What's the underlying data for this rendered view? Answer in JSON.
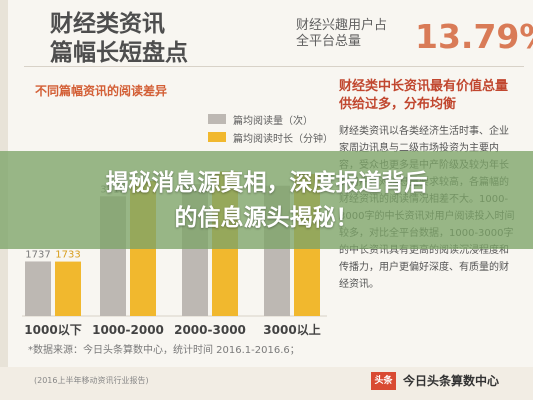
{
  "header": {
    "title_line1": "财经类资讯",
    "title_line2": "篇幅长短盘点",
    "share_label_line1": "财经兴趣用户占",
    "share_label_line2": "全平台总量",
    "share_value": "13.79%"
  },
  "subtitle": "不同篇幅资讯的阅读差异",
  "legend": {
    "items": [
      {
        "label": "篇均阅读量（次）",
        "color": "#bdb8b3"
      },
      {
        "label": "篇均阅读时长（分钟）",
        "color": "#f1b82e"
      }
    ]
  },
  "right_panel": {
    "title": "财经类中长资讯最有价值总量供给过多，分布均衡",
    "body": "财经类资讯以各类经济生活时事、企业家周边讯息与二级市场投资为主要内容，受众也更多是中产阶级及较为年长的用户，对信息量要求较高，各篇幅的财经资讯的阅读情况相差不大。1000-3000字的中长资讯对用户阅读投入时间较多，对比全平台数据，1000-3000字的中长资讯具有更高的阅读沉浸程度和传播力，用户更偏好深度、有质量的财经资讯。"
  },
  "chart_data": {
    "type": "bar",
    "categories": [
      "1000以下",
      "1000-2000",
      "2000-3000",
      "3000以上"
    ],
    "series": [
      {
        "name": "篇均阅读量（次）",
        "values": [
          1737,
          3812,
          4200,
          4150
        ]
      },
      {
        "name": "篇均阅读时长（分钟）",
        "values": [
          1733,
          4300,
          4600,
          4520
        ]
      }
    ],
    "data_labels": [
      "1737",
      "1733",
      "3812",
      "",
      "",
      "",
      "",
      ""
    ],
    "ylim": [
      0,
      5000
    ]
  },
  "source": "*数据来源：今日头条算数中心，统计时间 2016.1-2016.6；",
  "footer": {
    "left_text": "(2016上半年移动资讯行业报告)",
    "logo_mark": "头条",
    "logo_text": "今日头条算数中心"
  },
  "overlay": {
    "line1": "揭秘消息源真相，深度报道背后",
    "line2": "的信息源头揭秘！"
  }
}
